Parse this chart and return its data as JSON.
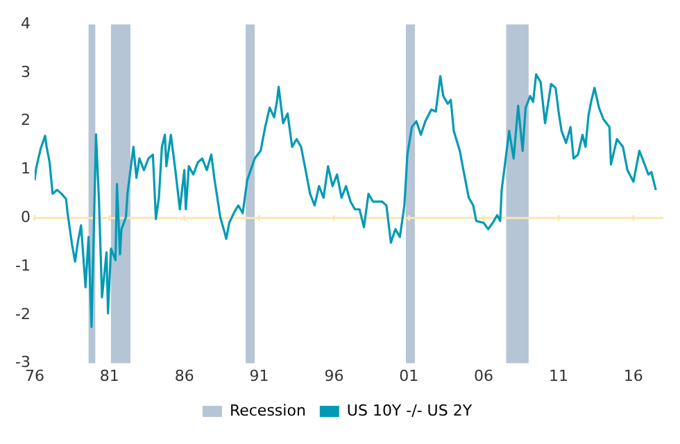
{
  "chart_data": {
    "type": "line",
    "xlim": [
      1976,
      2018
    ],
    "ylim": [
      -3,
      4
    ],
    "xticks": [
      {
        "value": 1976,
        "label": "76"
      },
      {
        "value": 1981,
        "label": "81"
      },
      {
        "value": 1986,
        "label": "86"
      },
      {
        "value": 1991,
        "label": "91"
      },
      {
        "value": 1996,
        "label": "96"
      },
      {
        "value": 2001,
        "label": "01"
      },
      {
        "value": 2006,
        "label": "06"
      },
      {
        "value": 2011,
        "label": "11"
      },
      {
        "value": 2016,
        "label": "16"
      }
    ],
    "yticks": [
      -3,
      -2,
      -1,
      0,
      1,
      2,
      3,
      4
    ],
    "grid": false,
    "legend": "bottom",
    "line_style": "solid",
    "marker": "none",
    "bands": [
      {
        "axis": "x",
        "from": 1979.6,
        "to": 1980.05,
        "label": "Recession",
        "color": "#b5c5d5"
      },
      {
        "axis": "x",
        "from": 1981.1,
        "to": 1982.4,
        "color": "#b5c5d5"
      },
      {
        "axis": "x",
        "from": 1990.1,
        "to": 1990.7,
        "color": "#b5c5d5"
      },
      {
        "axis": "x",
        "from": 2000.8,
        "to": 2001.4,
        "color": "#b5c5d5"
      },
      {
        "axis": "x",
        "from": 2007.5,
        "to": 2009.0,
        "color": "#b5c5d5"
      }
    ],
    "ref_lines": [
      {
        "axis": "y",
        "value": 0,
        "color": "#fbe6b0"
      }
    ],
    "series": [
      {
        "name": "US 10Y -/- US 2Y",
        "color": "#009ab5",
        "x": [
          1976.0,
          1976.1,
          1976.4,
          1976.7,
          1976.8,
          1977.0,
          1977.2,
          1977.5,
          1977.8,
          1978.1,
          1978.2,
          1978.5,
          1978.7,
          1978.9,
          1979.1,
          1979.4,
          1979.6,
          1979.8,
          1980.1,
          1980.3,
          1980.5,
          1980.8,
          1980.9,
          1981.1,
          1981.4,
          1981.5,
          1981.7,
          1981.8,
          1982.1,
          1982.2,
          1982.4,
          1982.6,
          1982.8,
          1983.0,
          1983.3,
          1983.6,
          1983.9,
          1984.1,
          1984.3,
          1984.5,
          1984.7,
          1984.8,
          1985.1,
          1985.4,
          1985.7,
          1986.0,
          1986.1,
          1986.3,
          1986.6,
          1986.9,
          1987.2,
          1987.5,
          1987.8,
          1988.0,
          1988.4,
          1988.7,
          1988.8,
          1989.0,
          1989.3,
          1989.6,
          1989.9,
          1990.2,
          1990.7,
          1991.1,
          1991.4,
          1991.7,
          1992.0,
          1992.2,
          1992.3,
          1992.6,
          1992.9,
          1993.2,
          1993.5,
          1993.8,
          1994.1,
          1994.4,
          1994.7,
          1995.0,
          1995.3,
          1995.6,
          1995.9,
          1996.2,
          1996.5,
          1996.8,
          1997.1,
          1997.4,
          1997.7,
          1998.0,
          1998.3,
          1998.6,
          1999.2,
          1999.5,
          1999.8,
          2000.1,
          2000.4,
          2000.7,
          2000.9,
          2001.2,
          2001.5,
          2001.8,
          2002.1,
          2002.5,
          2002.8,
          2003.1,
          2003.3,
          2003.6,
          2003.8,
          2004.0,
          2004.4,
          2004.7,
          2005.0,
          2005.3,
          2005.5,
          2006.0,
          2006.3,
          2006.6,
          2006.9,
          2007.1,
          2007.2,
          2007.7,
          2008.0,
          2008.3,
          2008.6,
          2008.8,
          2009.1,
          2009.3,
          2009.5,
          2009.8,
          2010.1,
          2010.5,
          2010.8,
          2011.0,
          2011.2,
          2011.5,
          2011.8,
          2012.0,
          2012.3,
          2012.6,
          2012.8,
          2013.0,
          2013.2,
          2013.4,
          2013.7,
          2014.0,
          2014.4,
          2014.5,
          2014.9,
          2015.3,
          2015.6,
          2016.0,
          2016.4,
          2016.7,
          2017.0,
          2017.2,
          2017.5
        ],
        "values": [
          0.78,
          1.03,
          1.43,
          1.7,
          1.47,
          1.15,
          0.5,
          0.58,
          0.5,
          0.39,
          0.1,
          -0.55,
          -0.9,
          -0.47,
          -0.15,
          -1.43,
          -0.39,
          -2.25,
          1.73,
          0.34,
          -1.64,
          -0.71,
          -1.97,
          -0.63,
          -0.87,
          0.7,
          -0.75,
          -0.23,
          0.02,
          0.5,
          0.99,
          1.47,
          0.83,
          1.23,
          0.99,
          1.23,
          1.31,
          -0.02,
          0.42,
          1.47,
          1.72,
          1.07,
          1.72,
          0.99,
          0.18,
          0.99,
          0.18,
          1.07,
          0.9,
          1.15,
          1.23,
          0.99,
          1.31,
          0.83,
          0.02,
          -0.31,
          -0.43,
          -0.1,
          0.1,
          0.26,
          0.1,
          0.78,
          1.23,
          1.39,
          1.88,
          2.28,
          2.08,
          2.44,
          2.71,
          1.96,
          2.16,
          1.47,
          1.63,
          1.47,
          0.99,
          0.5,
          0.26,
          0.66,
          0.42,
          1.07,
          0.66,
          0.9,
          0.42,
          0.66,
          0.34,
          0.18,
          0.18,
          -0.19,
          0.5,
          0.34,
          0.34,
          0.26,
          -0.51,
          -0.23,
          -0.39,
          0.26,
          1.31,
          1.88,
          2.0,
          1.72,
          2.0,
          2.24,
          2.2,
          2.93,
          2.52,
          2.36,
          2.44,
          1.8,
          1.39,
          0.9,
          0.42,
          0.26,
          -0.06,
          -0.1,
          -0.23,
          -0.1,
          0.06,
          -0.06,
          0.58,
          1.8,
          1.23,
          2.32,
          1.39,
          2.28,
          2.52,
          2.4,
          2.97,
          2.81,
          1.96,
          2.77,
          2.69,
          2.2,
          1.8,
          1.55,
          1.88,
          1.23,
          1.31,
          1.72,
          1.47,
          2.12,
          2.44,
          2.69,
          2.28,
          2.04,
          1.88,
          1.11,
          1.63,
          1.47,
          0.99,
          0.75,
          1.39,
          1.15,
          0.9,
          0.95,
          0.58
        ]
      }
    ]
  }
}
